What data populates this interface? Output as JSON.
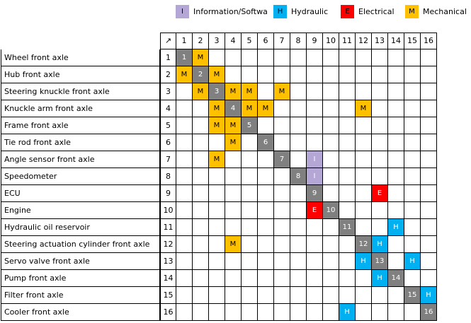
{
  "legend": [
    {
      "code": "I",
      "label": "Information/Software",
      "color": "#b4a7d6"
    },
    {
      "code": "H",
      "label": "Hydraulic",
      "color": "#00b0f0"
    },
    {
      "code": "E",
      "label": "Electrical",
      "color": "#ff0000"
    },
    {
      "code": "M",
      "label": "Mechanical",
      "color": "#ffc000"
    }
  ],
  "corner_symbol": "↗",
  "columns": [
    "1",
    "2",
    "3",
    "4",
    "5",
    "6",
    "7",
    "8",
    "9",
    "10",
    "11",
    "12",
    "13",
    "14",
    "15",
    "16"
  ],
  "rows": [
    {
      "name": "Wheel front axle",
      "number": "1",
      "marks": {
        "2": "M"
      }
    },
    {
      "name": "Hub front axle",
      "number": "2",
      "marks": {
        "1": "M",
        "3": "M"
      }
    },
    {
      "name": "Steering knuckle front axle",
      "number": "3",
      "marks": {
        "2": "M",
        "4": "M",
        "5": "M",
        "7": "M"
      }
    },
    {
      "name": "Knuckle arm front axle",
      "number": "4",
      "marks": {
        "3": "M",
        "5": "M",
        "6": "M",
        "12": "M"
      }
    },
    {
      "name": "Frame front axle",
      "number": "5",
      "marks": {
        "3": "M",
        "4": "M"
      }
    },
    {
      "name": "Tie rod front axle",
      "number": "6",
      "marks": {
        "4": "M"
      }
    },
    {
      "name": "Angle sensor front axle",
      "number": "7",
      "marks": {
        "3": "M",
        "9": "I"
      }
    },
    {
      "name": "Speedometer",
      "number": "8",
      "marks": {
        "9": "I"
      }
    },
    {
      "name": "ECU",
      "number": "9",
      "marks": {
        "13": "E"
      }
    },
    {
      "name": "Engine",
      "number": "10",
      "marks": {
        "9": "E"
      }
    },
    {
      "name": "Hydraulic oil reservoir",
      "number": "11",
      "marks": {
        "14": "H"
      }
    },
    {
      "name": "Steering actuation cylinder front axle",
      "number": "12",
      "marks": {
        "4": "M",
        "13": "H"
      }
    },
    {
      "name": "Servo valve front axle",
      "number": "13",
      "marks": {
        "12": "H",
        "15": "H"
      }
    },
    {
      "name": "Pump front axle",
      "number": "14",
      "marks": {
        "13": "H"
      }
    },
    {
      "name": "Filter front axle",
      "number": "15",
      "marks": {
        "16": "H"
      }
    },
    {
      "name": "Cooler front axle",
      "number": "16",
      "marks": {
        "11": "H"
      }
    }
  ]
}
